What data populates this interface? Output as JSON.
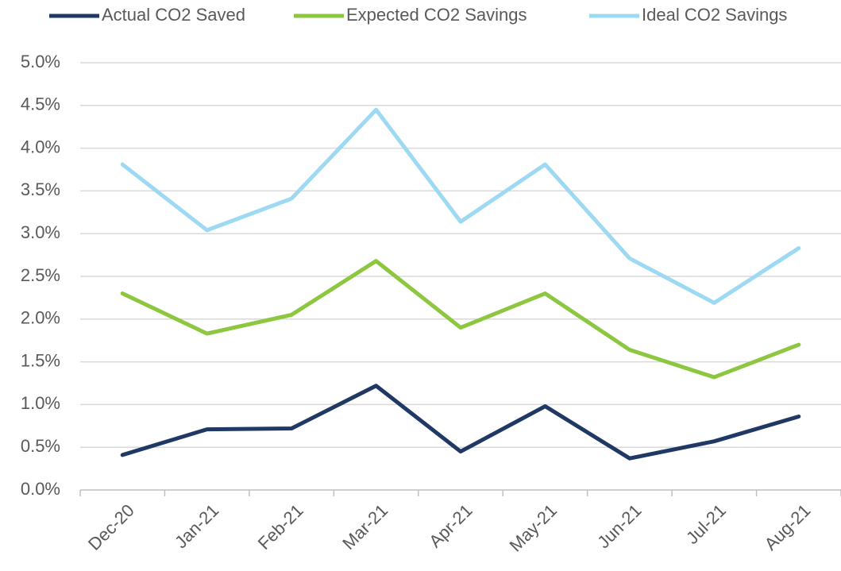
{
  "chart_data": {
    "type": "line",
    "categories": [
      "Dec-20",
      "Jan-21",
      "Feb-21",
      "Mar-21",
      "Apr-21",
      "May-21",
      "Jun-21",
      "Jul-21",
      "Aug-21"
    ],
    "series": [
      {
        "name": "Actual CO2 Saved",
        "color": "#1f3864",
        "values": [
          0.41,
          0.71,
          0.72,
          1.22,
          0.45,
          0.98,
          0.37,
          0.57,
          0.86
        ]
      },
      {
        "name": "Expected CO2 Savings",
        "color": "#8dc63f",
        "values": [
          2.3,
          1.83,
          2.05,
          2.68,
          1.9,
          2.3,
          1.64,
          1.32,
          1.7
        ]
      },
      {
        "name": "Ideal CO2 Savings",
        "color": "#9dd9f3",
        "values": [
          3.81,
          3.04,
          3.41,
          4.45,
          3.14,
          3.81,
          2.71,
          2.19,
          2.83
        ]
      }
    ],
    "ylim": [
      0,
      5
    ],
    "yticks": [
      {
        "value": 0,
        "label": "0.0%"
      },
      {
        "value": 0.5,
        "label": "0.5%"
      },
      {
        "value": 1,
        "label": "1.0%"
      },
      {
        "value": 1.5,
        "label": "1.5%"
      },
      {
        "value": 2,
        "label": "2.0%"
      },
      {
        "value": 2.5,
        "label": "2.5%"
      },
      {
        "value": 3,
        "label": "3.0%"
      },
      {
        "value": 3.5,
        "label": "3.5%"
      },
      {
        "value": 4,
        "label": "4.0%"
      },
      {
        "value": 4.5,
        "label": "4.5%"
      },
      {
        "value": 5,
        "label": "5.0%"
      }
    ],
    "grid": true,
    "legend": "top"
  }
}
